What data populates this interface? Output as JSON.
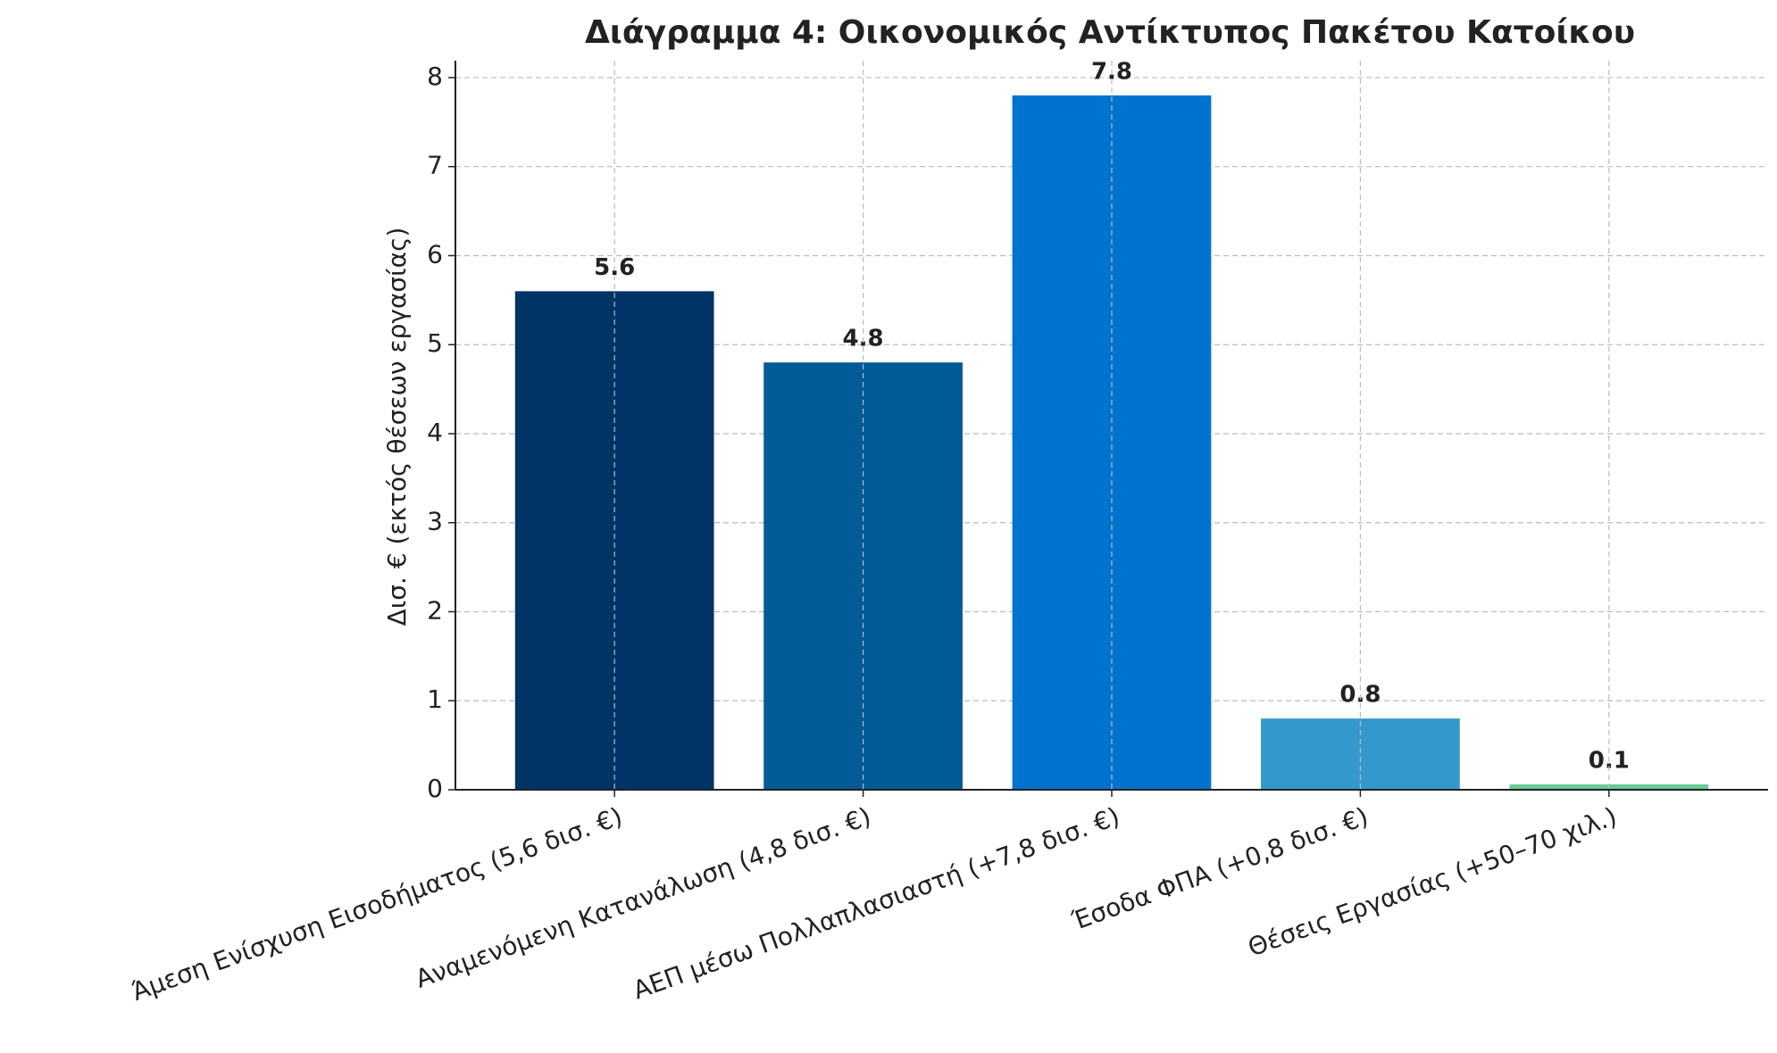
{
  "chart_data": {
    "type": "bar",
    "title": "Διάγραμμα 4: Οικονομικός Αντίκτυπος Πακέτου Κατοίκου",
    "y_label": "Δισ. € (εκτός θέσεων εργασίας)",
    "categories": [
      "Άμεση Ενίσχυση Εισοδήματος (5,6 δισ. €)",
      "Αναμενόμενη Κατανάλωση (4,8 δισ. €)",
      "ΑΕΠ μέσω Πολλαπλασιαστή (+7,8 δισ. €)",
      "Έσοδα ΦΠΑ (+0,8 δισ. €)",
      "Θέσεις Εργασίας (+50–70 χιλ.)"
    ],
    "values": [
      5.6,
      4.8,
      7.8,
      0.8,
      0.06
    ],
    "value_labels": [
      "5.6",
      "4.8",
      "7.8",
      "0.8",
      "0.1"
    ],
    "colors": [
      "#003366",
      "#005b96",
      "#0073cf",
      "#3399cc",
      "#66cc99"
    ],
    "ylim": [
      0,
      8.19
    ],
    "yticks": [
      0,
      1,
      2,
      3,
      4,
      5,
      6,
      7,
      8
    ],
    "grid": true
  }
}
